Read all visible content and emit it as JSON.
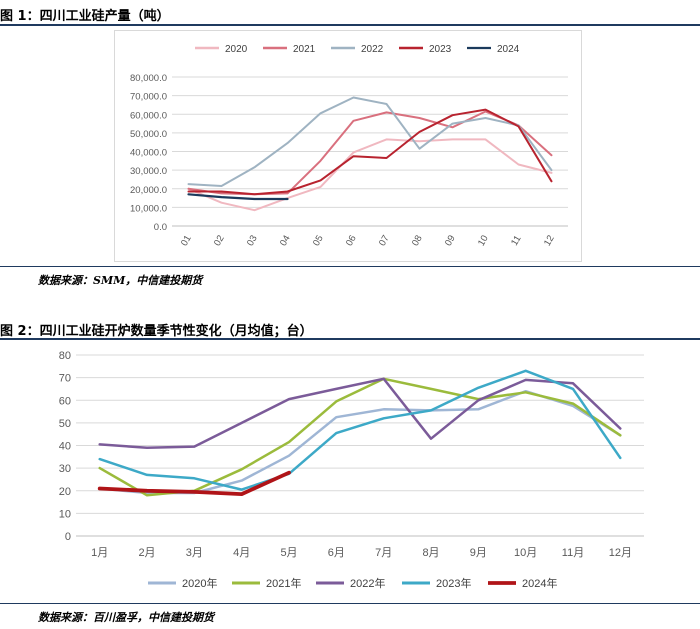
{
  "figure1": {
    "title": "图 1：四川工业硅产量（吨）",
    "source": "数据来源：SMM，中信建投期货"
  },
  "figure2": {
    "title": "图 2：四川工业硅开炉数量季节性变化（月均值；台）",
    "source": "数据来源：百川盈孚，中信建投期货"
  },
  "chart_data": [
    {
      "type": "line",
      "title": "图 1：四川工业硅产量（吨）",
      "categories": [
        "01",
        "02",
        "03",
        "04",
        "05",
        "06",
        "07",
        "08",
        "09",
        "10",
        "11",
        "12"
      ],
      "ylim": [
        0,
        80000
      ],
      "y_ticks": [
        "0.0",
        "10,000.0",
        "20,000.0",
        "30,000.0",
        "40,000.0",
        "50,000.0",
        "60,000.0",
        "70,000.0",
        "80,000.0"
      ],
      "grid": true,
      "legend": "top",
      "series": [
        {
          "name": "2020",
          "color": "#f0b8c0",
          "values": [
            20000,
            12500,
            8500,
            15000,
            21000,
            39500,
            46500,
            45500,
            46500,
            46500,
            33000,
            28500
          ]
        },
        {
          "name": "2021",
          "color": "#d9707e",
          "values": [
            20000,
            17500,
            17000,
            17500,
            35000,
            56500,
            61000,
            58000,
            53000,
            61500,
            54000,
            38000
          ]
        },
        {
          "name": "2022",
          "color": "#9fb3c2",
          "values": [
            22500,
            21500,
            31500,
            44500,
            60500,
            69000,
            65500,
            41500,
            55000,
            58000,
            54000,
            30000
          ]
        },
        {
          "name": "2023",
          "color": "#b8232f",
          "values": [
            18500,
            18500,
            17000,
            18500,
            24500,
            37500,
            36500,
            50500,
            59500,
            62500,
            53500,
            24000
          ]
        },
        {
          "name": "2024",
          "color": "#1b3a5c",
          "values": [
            17000,
            15500,
            14500,
            14500,
            null,
            null,
            null,
            null,
            null,
            null,
            null,
            null
          ]
        }
      ]
    },
    {
      "type": "line",
      "title": "图 2：四川工业硅开炉数量季节性变化（月均值；台）",
      "categories": [
        "1月",
        "2月",
        "3月",
        "4月",
        "5月",
        "6月",
        "7月",
        "8月",
        "9月",
        "10月",
        "11月",
        "12月"
      ],
      "ylim": [
        0,
        80
      ],
      "y_ticks": [
        "0",
        "10",
        "20",
        "30",
        "40",
        "50",
        "60",
        "70",
        "80"
      ],
      "grid": true,
      "legend": "bottom",
      "series": [
        {
          "name": "2020年",
          "color": "#9fb6d5",
          "values": [
            21,
            19,
            19,
            24.5,
            35.5,
            52.5,
            56,
            55.5,
            56,
            64,
            57.5,
            44.5
          ]
        },
        {
          "name": "2021年",
          "color": "#9bbb3c",
          "values": [
            30,
            18,
            20,
            29.5,
            41.5,
            59.5,
            69.5,
            65,
            60.5,
            63.5,
            58.5,
            44.5
          ]
        },
        {
          "name": "2022年",
          "color": "#7b5b99",
          "values": [
            40.5,
            39,
            39.5,
            50,
            60.5,
            65,
            69.5,
            43,
            60,
            69,
            67.5,
            47.5
          ]
        },
        {
          "name": "2023年",
          "color": "#3da9c7",
          "values": [
            34,
            27,
            25.5,
            20.5,
            27.5,
            45.5,
            52,
            55.5,
            65.5,
            73,
            65,
            34.5
          ]
        },
        {
          "name": "2024年",
          "color": "#b01418",
          "values": [
            21,
            20,
            19.5,
            18.5,
            28,
            null,
            null,
            null,
            null,
            null,
            null,
            null
          ]
        }
      ]
    }
  ]
}
